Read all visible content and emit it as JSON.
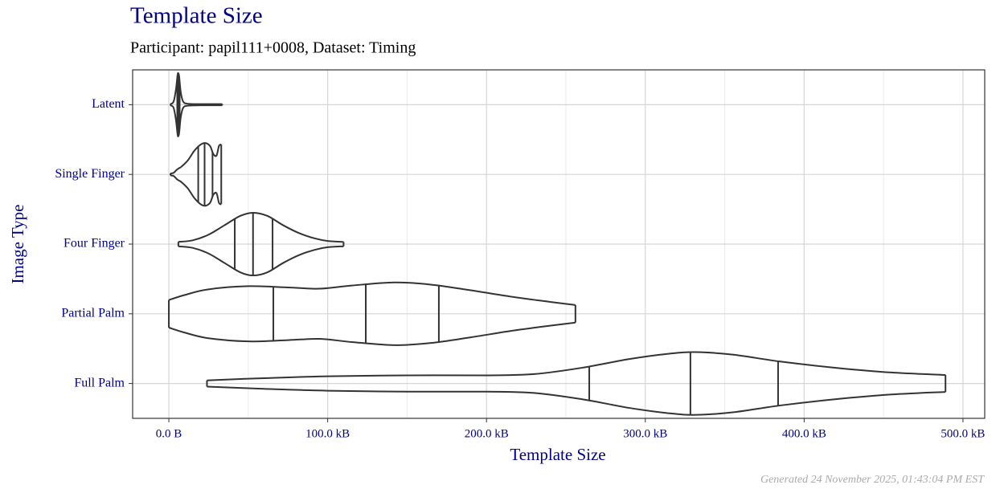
{
  "chart_data": {
    "type": "violin",
    "title": "Template Size",
    "subtitle": "Participant: papil111+0008, Dataset: Timing",
    "x_label": "Template Size",
    "y_label": "Image Type",
    "footer": "Generated 24 November 2025, 01:43:04 PM EST",
    "categories": [
      "Latent",
      "Single Finger",
      "Four Finger",
      "Partial Palm",
      "Full Palm"
    ],
    "violins": [
      {
        "x": [
          1,
          3,
          4.5,
          5.5,
          6,
          6.5,
          7.5,
          9,
          12,
          20,
          33.6
        ],
        "width": [
          0.02,
          0.1,
          0.5,
          0.95,
          1,
          0.9,
          0.4,
          0.1,
          0.03,
          0.02,
          0.02
        ],
        "quartiles": [
          5.3,
          6,
          6.8
        ]
      },
      {
        "x": [
          1,
          3,
          5,
          6.5,
          8,
          12,
          16,
          20,
          23,
          26,
          28,
          30,
          31.5,
          32.5,
          33
        ],
        "width": [
          0.03,
          0.05,
          0.15,
          0.2,
          0.25,
          0.45,
          0.75,
          0.95,
          1,
          0.9,
          0.65,
          0.6,
          0.9,
          0.95,
          0.95
        ],
        "quartiles": [
          18.5,
          22.5,
          27.5
        ]
      },
      {
        "x": [
          6,
          15,
          25,
          35,
          45,
          53,
          62,
          72,
          82,
          92,
          100,
          110
        ],
        "width": [
          0.07,
          0.12,
          0.3,
          0.6,
          0.9,
          1,
          0.9,
          0.6,
          0.35,
          0.18,
          0.1,
          0.07
        ],
        "quartiles": [
          41.5,
          53,
          65.3
        ]
      },
      {
        "x": [
          0,
          10,
          25,
          50,
          75,
          95,
          115,
          142,
          165,
          190,
          215,
          240,
          256
        ],
        "width": [
          0.44,
          0.6,
          0.78,
          0.88,
          0.84,
          0.8,
          0.9,
          1,
          0.93,
          0.75,
          0.55,
          0.38,
          0.28
        ],
        "quartiles": [
          65.8,
          124,
          170
        ]
      },
      {
        "x": [
          24,
          60,
          100,
          150,
          200,
          230,
          260,
          290,
          315,
          332,
          355,
          385,
          420,
          455,
          489
        ],
        "width": [
          0.1,
          0.17,
          0.23,
          0.26,
          0.26,
          0.3,
          0.5,
          0.78,
          0.95,
          1,
          0.92,
          0.7,
          0.5,
          0.35,
          0.27
        ],
        "quartiles": [
          264.7,
          328.4,
          383.6
        ]
      }
    ],
    "xlim": [
      -22.8,
      513.7
    ],
    "xticks": [
      {
        "value": 0,
        "label": "0.0 B"
      },
      {
        "value": 100,
        "label": "100.0 kB"
      },
      {
        "value": 200,
        "label": "200.0 kB"
      },
      {
        "value": 300,
        "label": "300.0 kB"
      },
      {
        "value": 400,
        "label": "400.0 kB"
      },
      {
        "value": 500,
        "label": "500.0 kB"
      }
    ],
    "xminor": [
      50,
      150,
      250,
      350,
      450
    ],
    "grid": true,
    "color": "#333333"
  }
}
